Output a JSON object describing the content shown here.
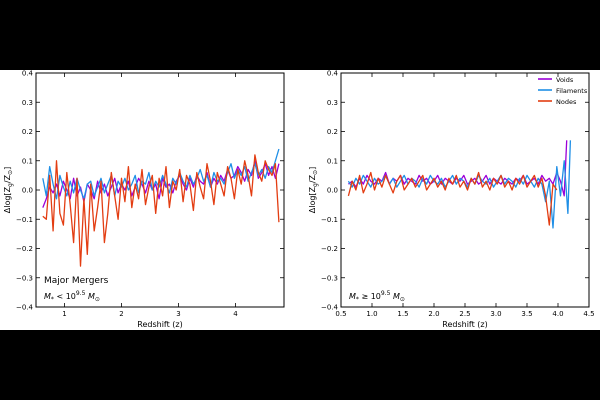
{
  "colors": {
    "voids": "#9b00d9",
    "filaments": "#1f8fe6",
    "nodes": "#e33d12"
  },
  "chart_data": [
    {
      "type": "line",
      "panel": "left",
      "xlabel": "Redshift (z)",
      "ylabel": "Δlog[Z_g/Z_⊙]",
      "ylabel_main": "Δlog[Z",
      "ylabel_sub1": "g",
      "ylabel_mid": "/Z",
      "ylabel_sub2": "⊙",
      "ylabel_end": "]",
      "xlim": [
        0.5,
        4.85
      ],
      "ylim": [
        -0.4,
        0.4
      ],
      "xticks": [
        1,
        2,
        3,
        4
      ],
      "xtick_labels": [
        "1",
        "2",
        "3",
        "4"
      ],
      "yticks": [
        -0.4,
        -0.3,
        -0.2,
        -0.1,
        0.0,
        0.1,
        0.2,
        0.3,
        0.4
      ],
      "ytick_labels": [
        "−0.4",
        "−0.3",
        "−0.2",
        "−0.1",
        "0.0",
        "0.1",
        "0.2",
        "0.3",
        "0.4"
      ],
      "annotation": "Major Mergers",
      "mass_label_main": "M",
      "mass_label_sub": "*",
      "mass_label_mid": " < 10",
      "mass_label_sup": "9.5",
      "mass_label_unit": " M",
      "mass_label_unit_sub": "⊙",
      "series": [
        {
          "name": "Voids",
          "x": [
            0.62,
            0.68,
            0.74,
            0.8,
            0.86,
            0.92,
            0.98,
            1.04,
            1.1,
            1.16,
            1.22,
            1.28,
            1.34,
            1.4,
            1.46,
            1.52,
            1.58,
            1.64,
            1.7,
            1.76,
            1.82,
            1.88,
            1.94,
            2.0,
            2.06,
            2.12,
            2.18,
            2.24,
            2.3,
            2.36,
            2.42,
            2.48,
            2.54,
            2.6,
            2.66,
            2.72,
            2.78,
            2.84,
            2.9,
            2.96,
            3.02,
            3.08,
            3.14,
            3.2,
            3.26,
            3.32,
            3.38,
            3.44,
            3.5,
            3.56,
            3.62,
            3.68,
            3.74,
            3.8,
            3.86,
            3.92,
            3.98,
            4.04,
            4.1,
            4.16,
            4.22,
            4.28,
            4.34,
            4.4,
            4.46,
            4.52,
            4.58,
            4.64,
            4.7,
            4.76
          ],
          "y": [
            -0.06,
            -0.03,
            0.01,
            -0.01,
            0.02,
            -0.02,
            0.03,
            0.0,
            -0.03,
            0.04,
            -0.02,
            0.01,
            -0.04,
            0.02,
            0.0,
            -0.03,
            0.03,
            -0.01,
            0.02,
            -0.02,
            0.01,
            0.04,
            -0.01,
            0.02,
            0.0,
            0.03,
            -0.02,
            0.01,
            0.04,
            0.02,
            -0.01,
            0.03,
            0.0,
            0.02,
            -0.03,
            0.04,
            0.01,
            0.02,
            -0.01,
            0.03,
            0.05,
            0.02,
            0.0,
            0.04,
            0.01,
            0.05,
            0.03,
            0.02,
            0.06,
            0.01,
            0.04,
            0.02,
            0.05,
            0.03,
            0.07,
            0.04,
            0.05,
            0.08,
            0.06,
            0.03,
            0.07,
            0.05,
            0.1,
            0.04,
            0.06,
            0.09,
            0.05,
            0.08,
            0.04,
            0.09
          ]
        },
        {
          "name": "Filaments",
          "x": [
            0.62,
            0.68,
            0.74,
            0.8,
            0.86,
            0.92,
            0.98,
            1.04,
            1.1,
            1.16,
            1.22,
            1.28,
            1.34,
            1.4,
            1.46,
            1.52,
            1.58,
            1.64,
            1.7,
            1.76,
            1.82,
            1.88,
            1.94,
            2.0,
            2.06,
            2.12,
            2.18,
            2.24,
            2.3,
            2.36,
            2.42,
            2.48,
            2.54,
            2.6,
            2.66,
            2.72,
            2.78,
            2.84,
            2.9,
            2.96,
            3.02,
            3.08,
            3.14,
            3.2,
            3.26,
            3.32,
            3.38,
            3.44,
            3.5,
            3.56,
            3.62,
            3.68,
            3.74,
            3.8,
            3.86,
            3.92,
            3.98,
            4.04,
            4.1,
            4.16,
            4.22,
            4.28,
            4.34,
            4.4,
            4.46,
            4.52,
            4.58,
            4.64,
            4.7,
            4.76
          ],
          "y": [
            0.04,
            -0.02,
            0.08,
            0.02,
            -0.03,
            0.05,
            0.01,
            -0.02,
            0.03,
            -0.01,
            0.04,
            0.0,
            -0.03,
            0.02,
            0.03,
            -0.02,
            0.01,
            0.04,
            -0.01,
            0.02,
            0.05,
            -0.02,
            0.03,
            0.01,
            0.04,
            0.0,
            0.02,
            0.05,
            -0.01,
            0.03,
            0.02,
            0.06,
            0.0,
            0.03,
            0.01,
            0.05,
            0.02,
            -0.01,
            0.04,
            0.02,
            0.06,
            0.03,
            0.01,
            0.05,
            0.02,
            0.04,
            0.07,
            0.03,
            0.05,
            0.01,
            0.06,
            0.03,
            0.04,
            0.02,
            0.06,
            0.09,
            0.04,
            0.07,
            0.05,
            0.08,
            0.03,
            0.06,
            0.09,
            0.05,
            0.07,
            0.04,
            0.08,
            0.06,
            0.1,
            0.14
          ]
        },
        {
          "name": "Nodes",
          "x": [
            0.62,
            0.68,
            0.74,
            0.8,
            0.86,
            0.92,
            0.98,
            1.04,
            1.1,
            1.16,
            1.22,
            1.28,
            1.34,
            1.4,
            1.46,
            1.52,
            1.58,
            1.64,
            1.7,
            1.76,
            1.82,
            1.88,
            1.94,
            2.0,
            2.06,
            2.12,
            2.18,
            2.24,
            2.3,
            2.36,
            2.42,
            2.48,
            2.54,
            2.6,
            2.66,
            2.72,
            2.78,
            2.84,
            2.9,
            2.96,
            3.02,
            3.08,
            3.14,
            3.2,
            3.26,
            3.32,
            3.38,
            3.44,
            3.5,
            3.56,
            3.62,
            3.68,
            3.74,
            3.8,
            3.86,
            3.92,
            3.98,
            4.04,
            4.1,
            4.16,
            4.22,
            4.28,
            4.34,
            4.4,
            4.46,
            4.52,
            4.58,
            4.64,
            4.7,
            4.76
          ],
          "y": [
            -0.09,
            -0.1,
            0.05,
            -0.14,
            0.1,
            -0.08,
            -0.12,
            0.06,
            -0.05,
            -0.18,
            0.04,
            -0.26,
            -0.03,
            -0.22,
            0.02,
            -0.14,
            -0.06,
            0.03,
            -0.18,
            -0.08,
            0.06,
            -0.02,
            -0.1,
            0.04,
            -0.04,
            0.08,
            -0.06,
            0.02,
            -0.03,
            0.07,
            -0.05,
            0.01,
            0.05,
            -0.08,
            0.04,
            -0.02,
            0.08,
            -0.06,
            0.03,
            0.0,
            0.07,
            -0.04,
            0.05,
            0.02,
            -0.07,
            0.06,
            0.01,
            -0.03,
            0.09,
            0.03,
            -0.05,
            0.06,
            0.02,
            -0.02,
            0.08,
            0.04,
            -0.03,
            0.07,
            0.02,
            0.1,
            0.05,
            -0.02,
            0.12,
            0.06,
            0.03,
            0.1,
            0.07,
            0.05,
            0.09,
            -0.11
          ]
        }
      ]
    },
    {
      "type": "line",
      "panel": "right",
      "xlabel": "Redshift (z)",
      "ylabel": "Δlog[Z_g/Z_⊙]",
      "ylabel_main": "Δlog[Z",
      "ylabel_sub1": "g",
      "ylabel_mid": "/Z",
      "ylabel_sub2": "⊙",
      "ylabel_end": "]",
      "xlim": [
        0.5,
        4.5
      ],
      "ylim": [
        -0.4,
        0.4
      ],
      "xticks": [
        0.5,
        1.0,
        1.5,
        2.0,
        2.5,
        3.0,
        3.5,
        4.0,
        4.5
      ],
      "xtick_labels": [
        "0.5",
        "1.0",
        "1.5",
        "2.0",
        "2.5",
        "3.0",
        "3.5",
        "4.0",
        "4.5"
      ],
      "yticks": [
        -0.4,
        -0.3,
        -0.2,
        -0.1,
        0.0,
        0.1,
        0.2,
        0.3,
        0.4
      ],
      "ytick_labels": [
        "−0.4",
        "−0.3",
        "−0.2",
        "−0.1",
        "0.0",
        "0.1",
        "0.2",
        "0.3",
        "0.4"
      ],
      "legend": [
        "Voids",
        "Filaments",
        "Nodes"
      ],
      "legend_position": "top-right",
      "mass_label_main": "M",
      "mass_label_sub": "*",
      "mass_label_mid": " ≥ 10",
      "mass_label_sup": "9.5",
      "mass_label_unit": " M",
      "mass_label_unit_sub": "⊙",
      "series": [
        {
          "name": "Voids",
          "x": [
            0.62,
            0.68,
            0.74,
            0.8,
            0.86,
            0.92,
            0.98,
            1.04,
            1.1,
            1.16,
            1.22,
            1.28,
            1.34,
            1.4,
            1.46,
            1.52,
            1.58,
            1.64,
            1.7,
            1.76,
            1.82,
            1.88,
            1.94,
            2.0,
            2.06,
            2.12,
            2.18,
            2.24,
            2.3,
            2.36,
            2.42,
            2.48,
            2.54,
            2.6,
            2.66,
            2.72,
            2.78,
            2.84,
            2.9,
            2.96,
            3.02,
            3.08,
            3.14,
            3.2,
            3.26,
            3.32,
            3.38,
            3.44,
            3.5,
            3.56,
            3.62,
            3.68,
            3.74,
            3.8,
            3.86,
            3.92,
            3.98,
            4.04,
            4.1,
            4.14
          ],
          "y": [
            0.02,
            0.03,
            0.01,
            0.04,
            0.02,
            0.05,
            0.03,
            0.02,
            0.04,
            0.03,
            0.06,
            0.02,
            0.04,
            0.03,
            0.05,
            0.02,
            0.04,
            0.03,
            0.02,
            0.05,
            0.03,
            0.04,
            0.02,
            0.03,
            0.05,
            0.02,
            0.04,
            0.03,
            0.02,
            0.04,
            0.03,
            0.05,
            0.02,
            0.03,
            0.04,
            0.02,
            0.03,
            0.05,
            0.02,
            0.04,
            0.03,
            0.02,
            0.04,
            0.03,
            0.02,
            0.04,
            0.03,
            0.05,
            0.02,
            0.03,
            0.04,
            0.02,
            0.05,
            0.03,
            0.04,
            0.02,
            0.06,
            0.03,
            -0.02,
            0.17
          ]
        },
        {
          "name": "Filaments",
          "x": [
            0.62,
            0.68,
            0.74,
            0.8,
            0.86,
            0.92,
            0.98,
            1.04,
            1.1,
            1.16,
            1.22,
            1.28,
            1.34,
            1.4,
            1.46,
            1.52,
            1.58,
            1.64,
            1.7,
            1.76,
            1.82,
            1.88,
            1.94,
            2.0,
            2.06,
            2.12,
            2.18,
            2.24,
            2.3,
            2.36,
            2.42,
            2.48,
            2.54,
            2.6,
            2.66,
            2.72,
            2.78,
            2.84,
            2.9,
            2.96,
            3.02,
            3.08,
            3.14,
            3.2,
            3.26,
            3.32,
            3.38,
            3.44,
            3.5,
            3.56,
            3.62,
            3.68,
            3.74,
            3.8,
            3.86,
            3.92,
            3.98,
            4.04,
            4.1,
            4.16,
            4.2
          ],
          "y": [
            0.03,
            0.01,
            0.04,
            0.02,
            0.05,
            0.03,
            0.01,
            0.04,
            0.02,
            0.03,
            0.05,
            0.02,
            0.04,
            0.01,
            0.03,
            0.05,
            0.02,
            0.04,
            0.03,
            0.01,
            0.04,
            0.02,
            0.05,
            0.03,
            0.02,
            0.04,
            0.01,
            0.03,
            0.05,
            0.02,
            0.04,
            0.03,
            0.01,
            0.04,
            0.02,
            0.05,
            0.03,
            0.02,
            0.04,
            0.01,
            0.03,
            0.05,
            0.02,
            0.04,
            0.03,
            0.01,
            0.04,
            0.02,
            0.05,
            0.03,
            0.01,
            0.04,
            0.02,
            -0.04,
            0.03,
            -0.13,
            0.08,
            -0.02,
            0.1,
            -0.08,
            0.17
          ]
        },
        {
          "name": "Nodes",
          "x": [
            0.62,
            0.68,
            0.74,
            0.8,
            0.86,
            0.92,
            0.98,
            1.04,
            1.1,
            1.16,
            1.22,
            1.28,
            1.34,
            1.4,
            1.46,
            1.52,
            1.58,
            1.64,
            1.7,
            1.76,
            1.82,
            1.88,
            1.94,
            2.0,
            2.06,
            2.12,
            2.18,
            2.24,
            2.3,
            2.36,
            2.42,
            2.48,
            2.54,
            2.6,
            2.66,
            2.72,
            2.78,
            2.84,
            2.9,
            2.96,
            3.02,
            3.08,
            3.14,
            3.2,
            3.26,
            3.32,
            3.38,
            3.44,
            3.5,
            3.56,
            3.62,
            3.68,
            3.74,
            3.8,
            3.86,
            3.92,
            3.98
          ],
          "y": [
            -0.02,
            0.03,
            0.0,
            0.05,
            -0.01,
            0.02,
            0.06,
            0.0,
            0.04,
            0.01,
            0.05,
            0.02,
            -0.01,
            0.03,
            0.05,
            0.0,
            0.02,
            0.04,
            0.01,
            0.03,
            0.05,
            0.0,
            0.02,
            0.04,
            0.01,
            0.03,
            0.0,
            0.04,
            0.02,
            0.05,
            0.01,
            0.03,
            0.0,
            0.04,
            0.02,
            0.06,
            0.01,
            0.03,
            0.0,
            0.04,
            0.02,
            0.05,
            0.01,
            0.03,
            0.0,
            0.04,
            0.02,
            0.05,
            0.01,
            0.03,
            0.05,
            0.01,
            0.04,
            -0.02,
            -0.12,
            0.02,
            0.0
          ]
        }
      ]
    }
  ]
}
